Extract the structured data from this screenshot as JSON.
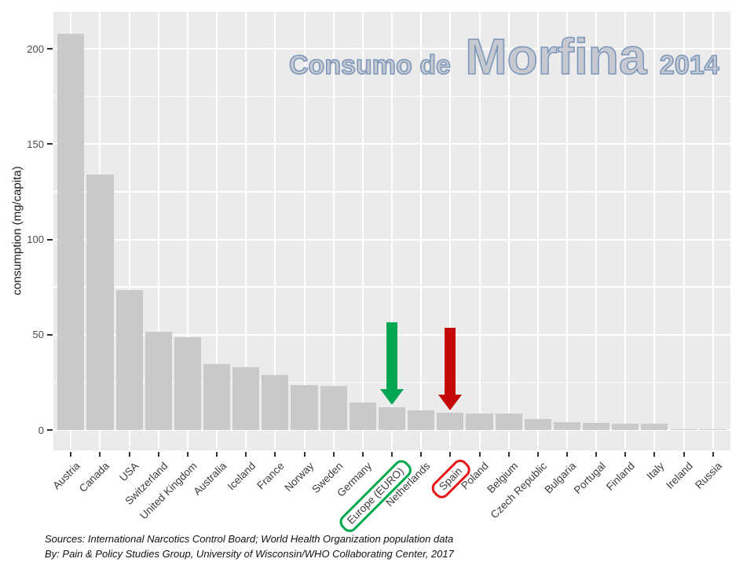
{
  "slide": {
    "title": {
      "prefix": "Consumo de",
      "main": "Morfina",
      "year": "2014",
      "fill_color": "#C6CAD0",
      "outline_color": "#7E98BD"
    },
    "footer": {
      "line1": "Sources: International Narcotics Control Board; World Health Organization population data",
      "line2": "By: Pain & Policy Studies Group, University of Wisconsin/WHO Collaborating Center,  2017"
    }
  },
  "chart_data": {
    "type": "bar",
    "title": "Consumo de Morfina 2014",
    "ylabel": "consumption (mg/capita)",
    "xlabel": "",
    "ylim": [
      -10,
      219
    ],
    "y_major_ticks": [
      0,
      50,
      100,
      150,
      200
    ],
    "y_minor_gridlines": [
      25,
      75,
      125,
      175
    ],
    "grid": true,
    "legend": "none",
    "panel_color": "#EBEBEB",
    "gridline_color": "#FFFFFF",
    "bar_color": "#C9C9C9",
    "categories": [
      "Austria",
      "Canada",
      "USA",
      "Switzerland",
      "United Kingdom",
      "Australia",
      "Iceland",
      "France",
      "Norway",
      "Sweden",
      "Germany",
      "Europe (EURO)",
      "Netherlands",
      "Spain",
      "Poland",
      "Belgium",
      "Czech Republic",
      "Bulgaria",
      "Portugal",
      "Finland",
      "Italy",
      "Ireland",
      "Russia"
    ],
    "values": [
      208,
      134,
      73.5,
      51.5,
      48.5,
      34.5,
      33,
      29,
      23.5,
      23,
      14.5,
      12,
      10.5,
      9,
      8.8,
      8.6,
      5.8,
      4.1,
      3.6,
      3.5,
      3.4,
      0.6,
      0.4
    ],
    "annotations": [
      {
        "target": "Europe (EURO)",
        "type": "down-arrow-and-label-box",
        "arrow_color": "#00A651",
        "box_color": "#00A84D"
      },
      {
        "target": "Spain",
        "type": "down-arrow-and-label-box",
        "arrow_color": "#C40808",
        "box_color": "#E81717"
      }
    ]
  }
}
